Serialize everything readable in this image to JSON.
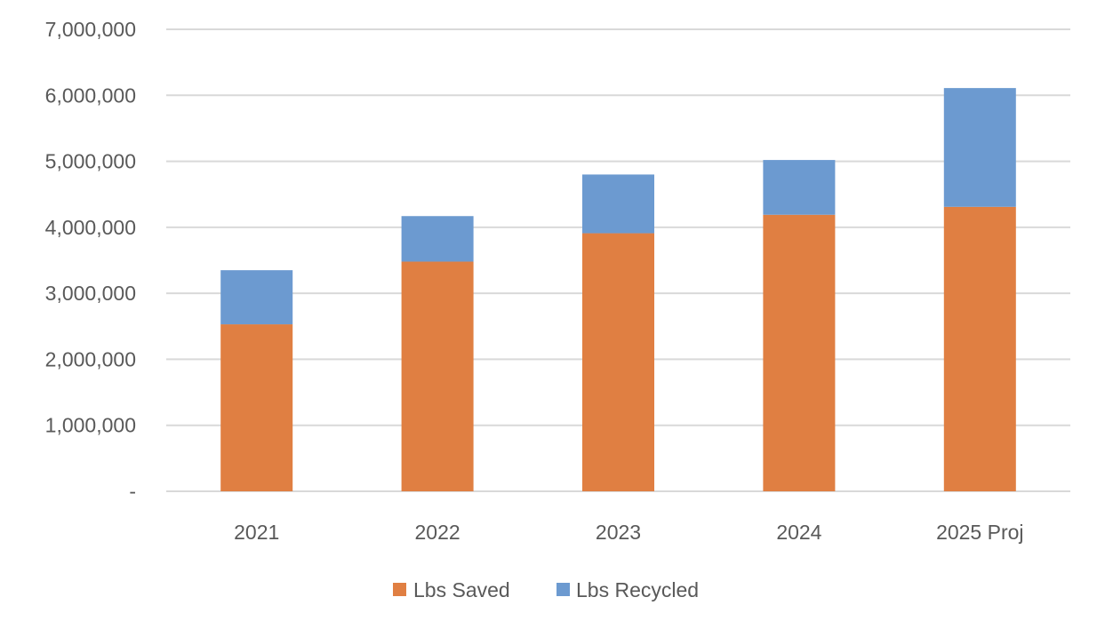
{
  "chart_data": {
    "type": "bar",
    "stacked": true,
    "categories": [
      "2021",
      "2022",
      "2023",
      "2024",
      "2025 Proj"
    ],
    "series": [
      {
        "name": "Lbs Saved",
        "color": "#E07F42",
        "values": [
          2530000,
          3480000,
          3910000,
          4190000,
          4310000
        ]
      },
      {
        "name": "Lbs Recycled",
        "color": "#6C9AD0",
        "values": [
          820000,
          690000,
          890000,
          830000,
          1800000
        ]
      }
    ],
    "ylim": [
      0,
      7000000
    ],
    "y_ticks": [
      0,
      1000000,
      2000000,
      3000000,
      4000000,
      5000000,
      6000000,
      7000000
    ],
    "y_tick_labels": [
      "-",
      "1,000,000",
      "2,000,000",
      "3,000,000",
      "4,000,000",
      "5,000,000",
      "6,000,000",
      "7,000,000"
    ],
    "grid": true,
    "legend_position": "bottom",
    "gridline_color": "#D9D9D9"
  }
}
